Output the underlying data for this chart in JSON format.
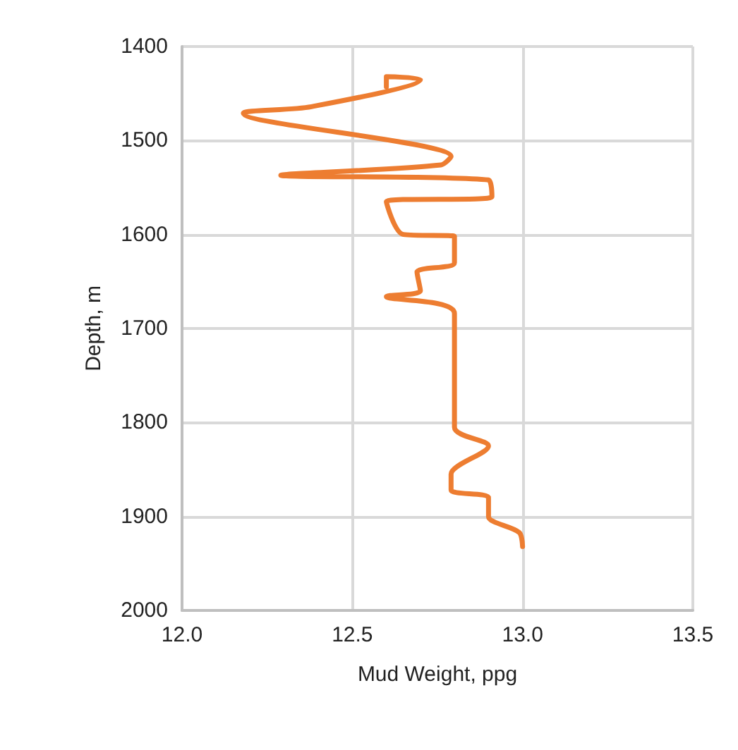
{
  "chart_data": {
    "type": "line",
    "xlabel": "Mud Weight, ppg",
    "ylabel": "Depth, m",
    "series": [
      {
        "color": "#ed7d31",
        "x": [
          12.6,
          12.6,
          12.7,
          12.38,
          12.18,
          12.79,
          12.76,
          12.29,
          12.9,
          12.91,
          12.6,
          12.65,
          12.8,
          12.8,
          12.69,
          12.7,
          12.6,
          12.8,
          12.8,
          12.9,
          12.79,
          12.79,
          12.9,
          12.9,
          12.99,
          13.0
        ],
        "values": [
          1443,
          1432,
          1435,
          1464,
          1471,
          1517,
          1526,
          1537,
          1542,
          1560,
          1565,
          1600,
          1602,
          1630,
          1640,
          1660,
          1666,
          1684,
          1805,
          1825,
          1855,
          1872,
          1880,
          1900,
          1917,
          1932
        ]
      }
    ],
    "xlim": [
      12.0,
      13.5
    ],
    "xticks": [
      {
        "value": 12.0,
        "label": "12.0"
      },
      {
        "value": 12.5,
        "label": "12.5"
      },
      {
        "value": 13.0,
        "label": "13.0"
      },
      {
        "value": 13.5,
        "label": "13.5"
      }
    ],
    "ylim": [
      2000,
      1400
    ],
    "yticks": [
      1400,
      1500,
      1600,
      1700,
      1800,
      1900,
      2000
    ],
    "grid": true,
    "marker": "none",
    "line_style": "solid"
  }
}
